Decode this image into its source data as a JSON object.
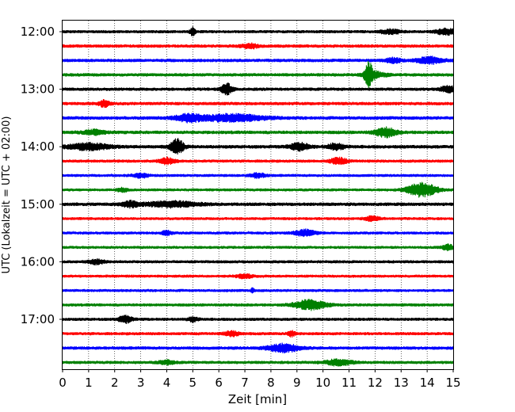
{
  "chart_data": {
    "type": "line",
    "subtype": "helicorder",
    "xlabel": "Zeit  [min]",
    "ylabel": "UTC (Lokalzeit = UTC + 02:00)",
    "xlim": [
      0,
      15
    ],
    "x_ticks": [
      "0",
      "1",
      "2",
      "3",
      "4",
      "5",
      "6",
      "7",
      "8",
      "9",
      "10",
      "11",
      "12",
      "13",
      "14",
      "15"
    ],
    "y_tick_labels": [
      "12:00",
      "13:00",
      "14:00",
      "15:00",
      "16:00",
      "17:00"
    ],
    "grid": {
      "vertical": true,
      "style": "dotted"
    },
    "color_cycle": [
      "#000000",
      "#ff0000",
      "#0000ff",
      "#008000"
    ],
    "traces": [
      {
        "start": "12:00",
        "noise": 0.6,
        "events": [
          {
            "t": 5.0,
            "amp": 1.6,
            "w": 0.1
          },
          {
            "t": 14.7,
            "amp": 1.3,
            "w": 0.35
          },
          {
            "t": 12.6,
            "amp": 0.9,
            "w": 0.4
          }
        ]
      },
      {
        "start": "12:15",
        "noise": 0.7,
        "events": [
          {
            "t": 7.2,
            "amp": 0.9,
            "w": 0.3
          }
        ]
      },
      {
        "start": "12:30",
        "noise": 0.7,
        "events": [
          {
            "t": 14.1,
            "amp": 1.3,
            "w": 0.5
          },
          {
            "t": 12.7,
            "amp": 0.9,
            "w": 0.3
          }
        ]
      },
      {
        "start": "12:45",
        "noise": 0.7,
        "events": [
          {
            "t": 11.75,
            "amp": 4.5,
            "w": 0.15
          },
          {
            "t": 12.0,
            "amp": 1.2,
            "w": 0.4
          }
        ]
      },
      {
        "start": "13:00",
        "noise": 0.7,
        "events": [
          {
            "t": 6.3,
            "amp": 2.4,
            "w": 0.2
          },
          {
            "t": 14.8,
            "amp": 1.2,
            "w": 0.3
          }
        ]
      },
      {
        "start": "13:15",
        "noise": 0.7,
        "events": [
          {
            "t": 1.6,
            "amp": 1.3,
            "w": 0.2
          }
        ]
      },
      {
        "start": "13:30",
        "noise": 0.8,
        "events": [
          {
            "t": 4.8,
            "amp": 1.4,
            "w": 0.5
          },
          {
            "t": 6.5,
            "amp": 1.4,
            "w": 1.2
          }
        ]
      },
      {
        "start": "13:45",
        "noise": 0.8,
        "events": [
          {
            "t": 12.4,
            "amp": 1.8,
            "w": 0.4
          },
          {
            "t": 1.2,
            "amp": 0.9,
            "w": 0.4
          }
        ]
      },
      {
        "start": "14:00",
        "noise": 0.8,
        "events": [
          {
            "t": 4.4,
            "amp": 3.0,
            "w": 0.25
          },
          {
            "t": 1.0,
            "amp": 1.3,
            "w": 0.8
          },
          {
            "t": 9.1,
            "amp": 1.5,
            "w": 0.35
          },
          {
            "t": 10.5,
            "amp": 1.3,
            "w": 0.3
          }
        ]
      },
      {
        "start": "14:15",
        "noise": 0.6,
        "events": [
          {
            "t": 4.0,
            "amp": 1.2,
            "w": 0.3
          },
          {
            "t": 10.6,
            "amp": 1.4,
            "w": 0.3
          }
        ]
      },
      {
        "start": "14:30",
        "noise": 0.5,
        "events": [
          {
            "t": 3.0,
            "amp": 0.9,
            "w": 0.3
          },
          {
            "t": 7.5,
            "amp": 0.9,
            "w": 0.3
          }
        ]
      },
      {
        "start": "14:45",
        "noise": 0.5,
        "events": [
          {
            "t": 13.8,
            "amp": 2.8,
            "w": 0.55
          },
          {
            "t": 2.3,
            "amp": 0.8,
            "w": 0.2
          }
        ]
      },
      {
        "start": "15:00",
        "noise": 0.8,
        "events": [
          {
            "t": 2.6,
            "amp": 1.2,
            "w": 0.3
          },
          {
            "t": 4.2,
            "amp": 1.1,
            "w": 1.0
          }
        ]
      },
      {
        "start": "15:15",
        "noise": 0.5,
        "events": [
          {
            "t": 11.9,
            "amp": 0.9,
            "w": 0.3
          }
        ]
      },
      {
        "start": "15:30",
        "noise": 0.5,
        "events": [
          {
            "t": 9.3,
            "amp": 1.3,
            "w": 0.4
          },
          {
            "t": 4.0,
            "amp": 0.9,
            "w": 0.2
          }
        ]
      },
      {
        "start": "15:45",
        "noise": 0.5,
        "events": [
          {
            "t": 14.8,
            "amp": 1.2,
            "w": 0.2
          }
        ]
      },
      {
        "start": "16:00",
        "noise": 0.6,
        "events": [
          {
            "t": 1.3,
            "amp": 0.9,
            "w": 0.3
          }
        ]
      },
      {
        "start": "16:15",
        "noise": 0.5,
        "events": [
          {
            "t": 7.0,
            "amp": 0.8,
            "w": 0.3
          }
        ]
      },
      {
        "start": "16:30",
        "noise": 0.5,
        "events": [
          {
            "t": 7.3,
            "amp": 1.3,
            "w": 0.05
          }
        ]
      },
      {
        "start": "16:45",
        "noise": 0.6,
        "events": [
          {
            "t": 9.5,
            "amp": 2.0,
            "w": 0.6
          }
        ]
      },
      {
        "start": "17:00",
        "noise": 0.6,
        "events": [
          {
            "t": 2.4,
            "amp": 1.4,
            "w": 0.25
          },
          {
            "t": 5.0,
            "amp": 0.9,
            "w": 0.2
          }
        ]
      },
      {
        "start": "17:15",
        "noise": 0.6,
        "events": [
          {
            "t": 8.8,
            "amp": 1.0,
            "w": 0.15
          },
          {
            "t": 6.5,
            "amp": 0.9,
            "w": 0.3
          }
        ]
      },
      {
        "start": "17:30",
        "noise": 0.7,
        "events": [
          {
            "t": 8.5,
            "amp": 1.6,
            "w": 0.6
          }
        ]
      },
      {
        "start": "17:45",
        "noise": 0.6,
        "events": [
          {
            "t": 10.6,
            "amp": 1.2,
            "w": 0.5
          },
          {
            "t": 4.0,
            "amp": 0.8,
            "w": 0.3
          }
        ]
      }
    ]
  }
}
